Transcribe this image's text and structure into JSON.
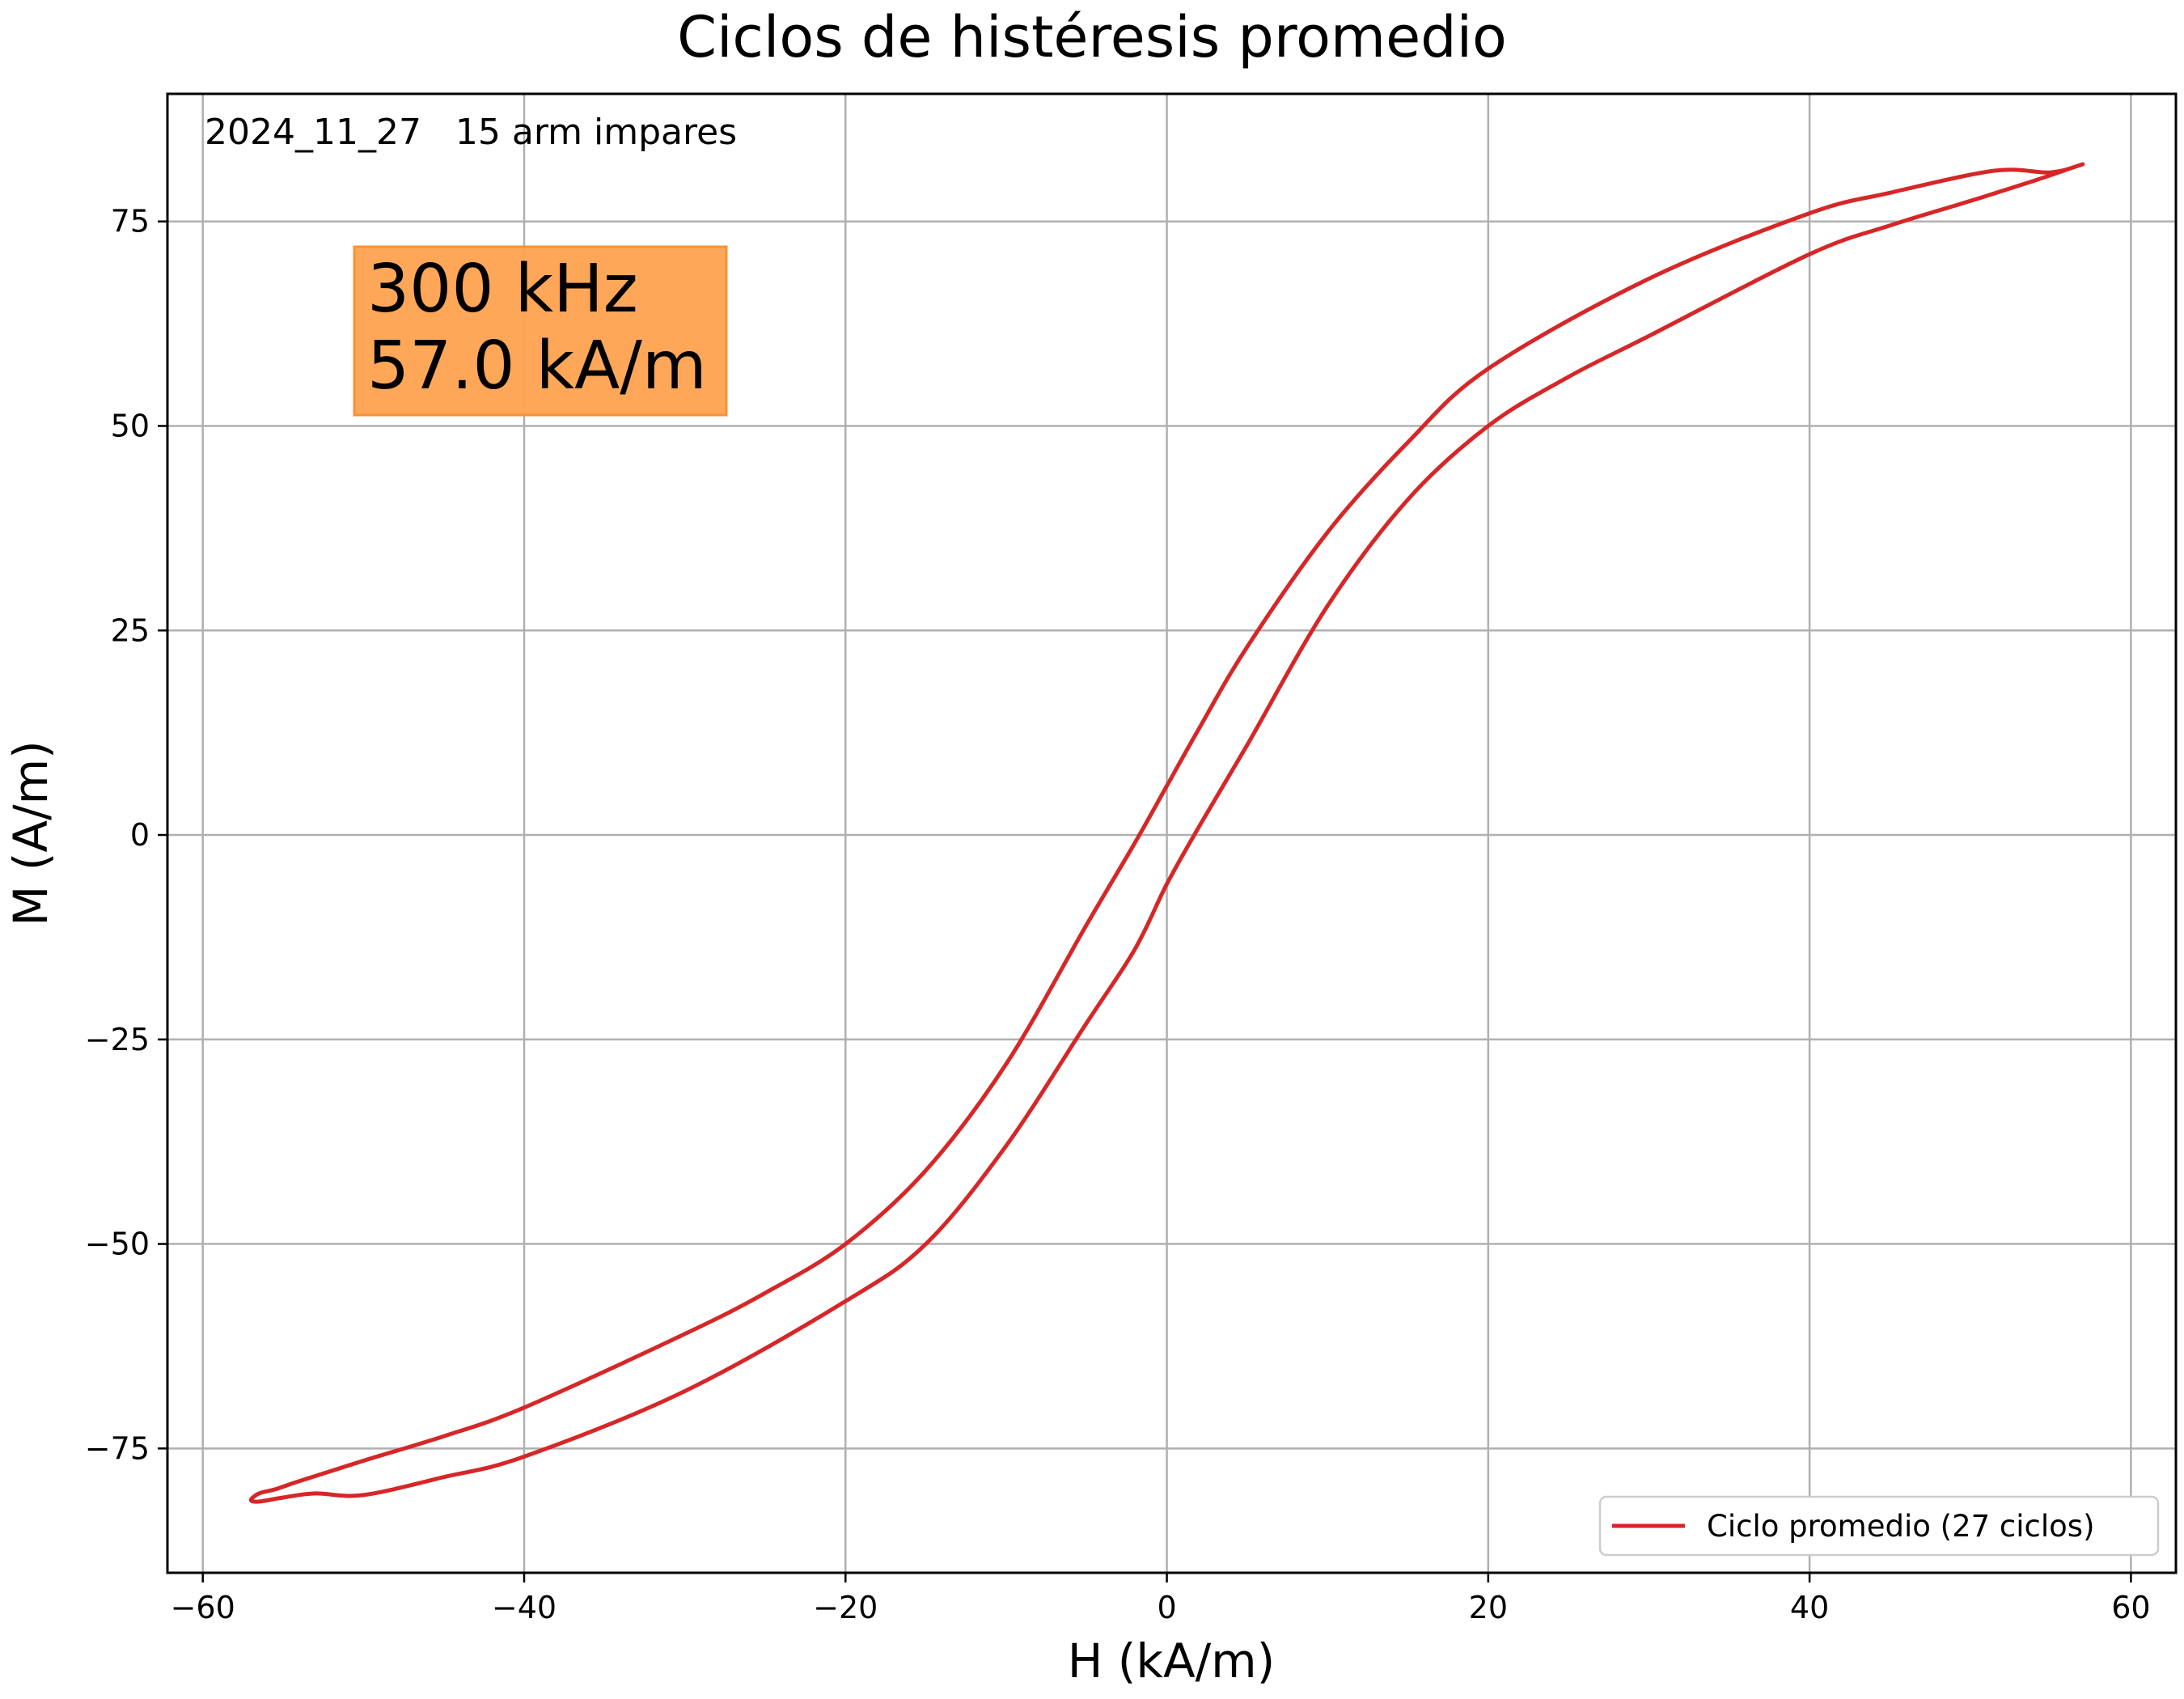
{
  "chart_data": {
    "type": "line",
    "title": "Ciclos de histéresis promedio",
    "xlabel": "H (kA/m)",
    "ylabel": "M (A/m)",
    "xlim": [
      -62.2,
      62.8
    ],
    "ylim": [
      -90.2,
      90.6
    ],
    "x_ticks": [
      -60,
      -40,
      -20,
      0,
      20,
      40,
      60
    ],
    "x_tick_labels": [
      "−60",
      "−40",
      "−20",
      "0",
      "20",
      "40",
      "60"
    ],
    "y_ticks": [
      -75,
      -50,
      -25,
      0,
      25,
      50,
      75
    ],
    "y_tick_labels": [
      "−75",
      "−50",
      "−25",
      "0",
      "25",
      "50",
      "75"
    ],
    "grid": true,
    "legend_position": "lower-right",
    "annotation": "2024_11_27   15 arm impares",
    "info_box": {
      "lines": [
        "300 kHz",
        "57.0 kA/m"
      ],
      "color": "#ffa24f"
    },
    "series": [
      {
        "name": "Ciclo promedio (27 ciclos)",
        "color": "#d62728",
        "x": [
          57,
          55,
          51.5,
          45,
          40,
          30,
          20,
          15,
          10,
          5,
          2,
          0,
          -2,
          -5,
          -10,
          -15,
          -20,
          -25,
          -30,
          -40,
          -45,
          -50,
          -54,
          -55.5,
          -56.5,
          -57,
          -56.5,
          -55,
          -53,
          -50,
          -45,
          -40,
          -30,
          -20,
          -15,
          -10,
          -5,
          -2,
          0,
          2,
          5,
          10,
          15,
          20,
          25,
          30,
          40,
          45,
          50,
          54,
          55.5,
          57
        ],
        "y": [
          82,
          81,
          81.2,
          78.5,
          76,
          68,
          57,
          48,
          37,
          23,
          13,
          6,
          -1,
          -11,
          -28,
          -41,
          -50,
          -56,
          -61,
          -70,
          -73.5,
          -76.5,
          -79,
          -80,
          -80.5,
          -81.3,
          -81.5,
          -81,
          -80.5,
          -80.7,
          -78.5,
          -76,
          -68,
          -57,
          -50,
          -38,
          -23,
          -14,
          -6,
          1,
          11,
          28,
          41,
          50,
          56,
          61,
          71,
          74.5,
          77.5,
          80,
          81,
          82
        ]
      }
    ]
  }
}
